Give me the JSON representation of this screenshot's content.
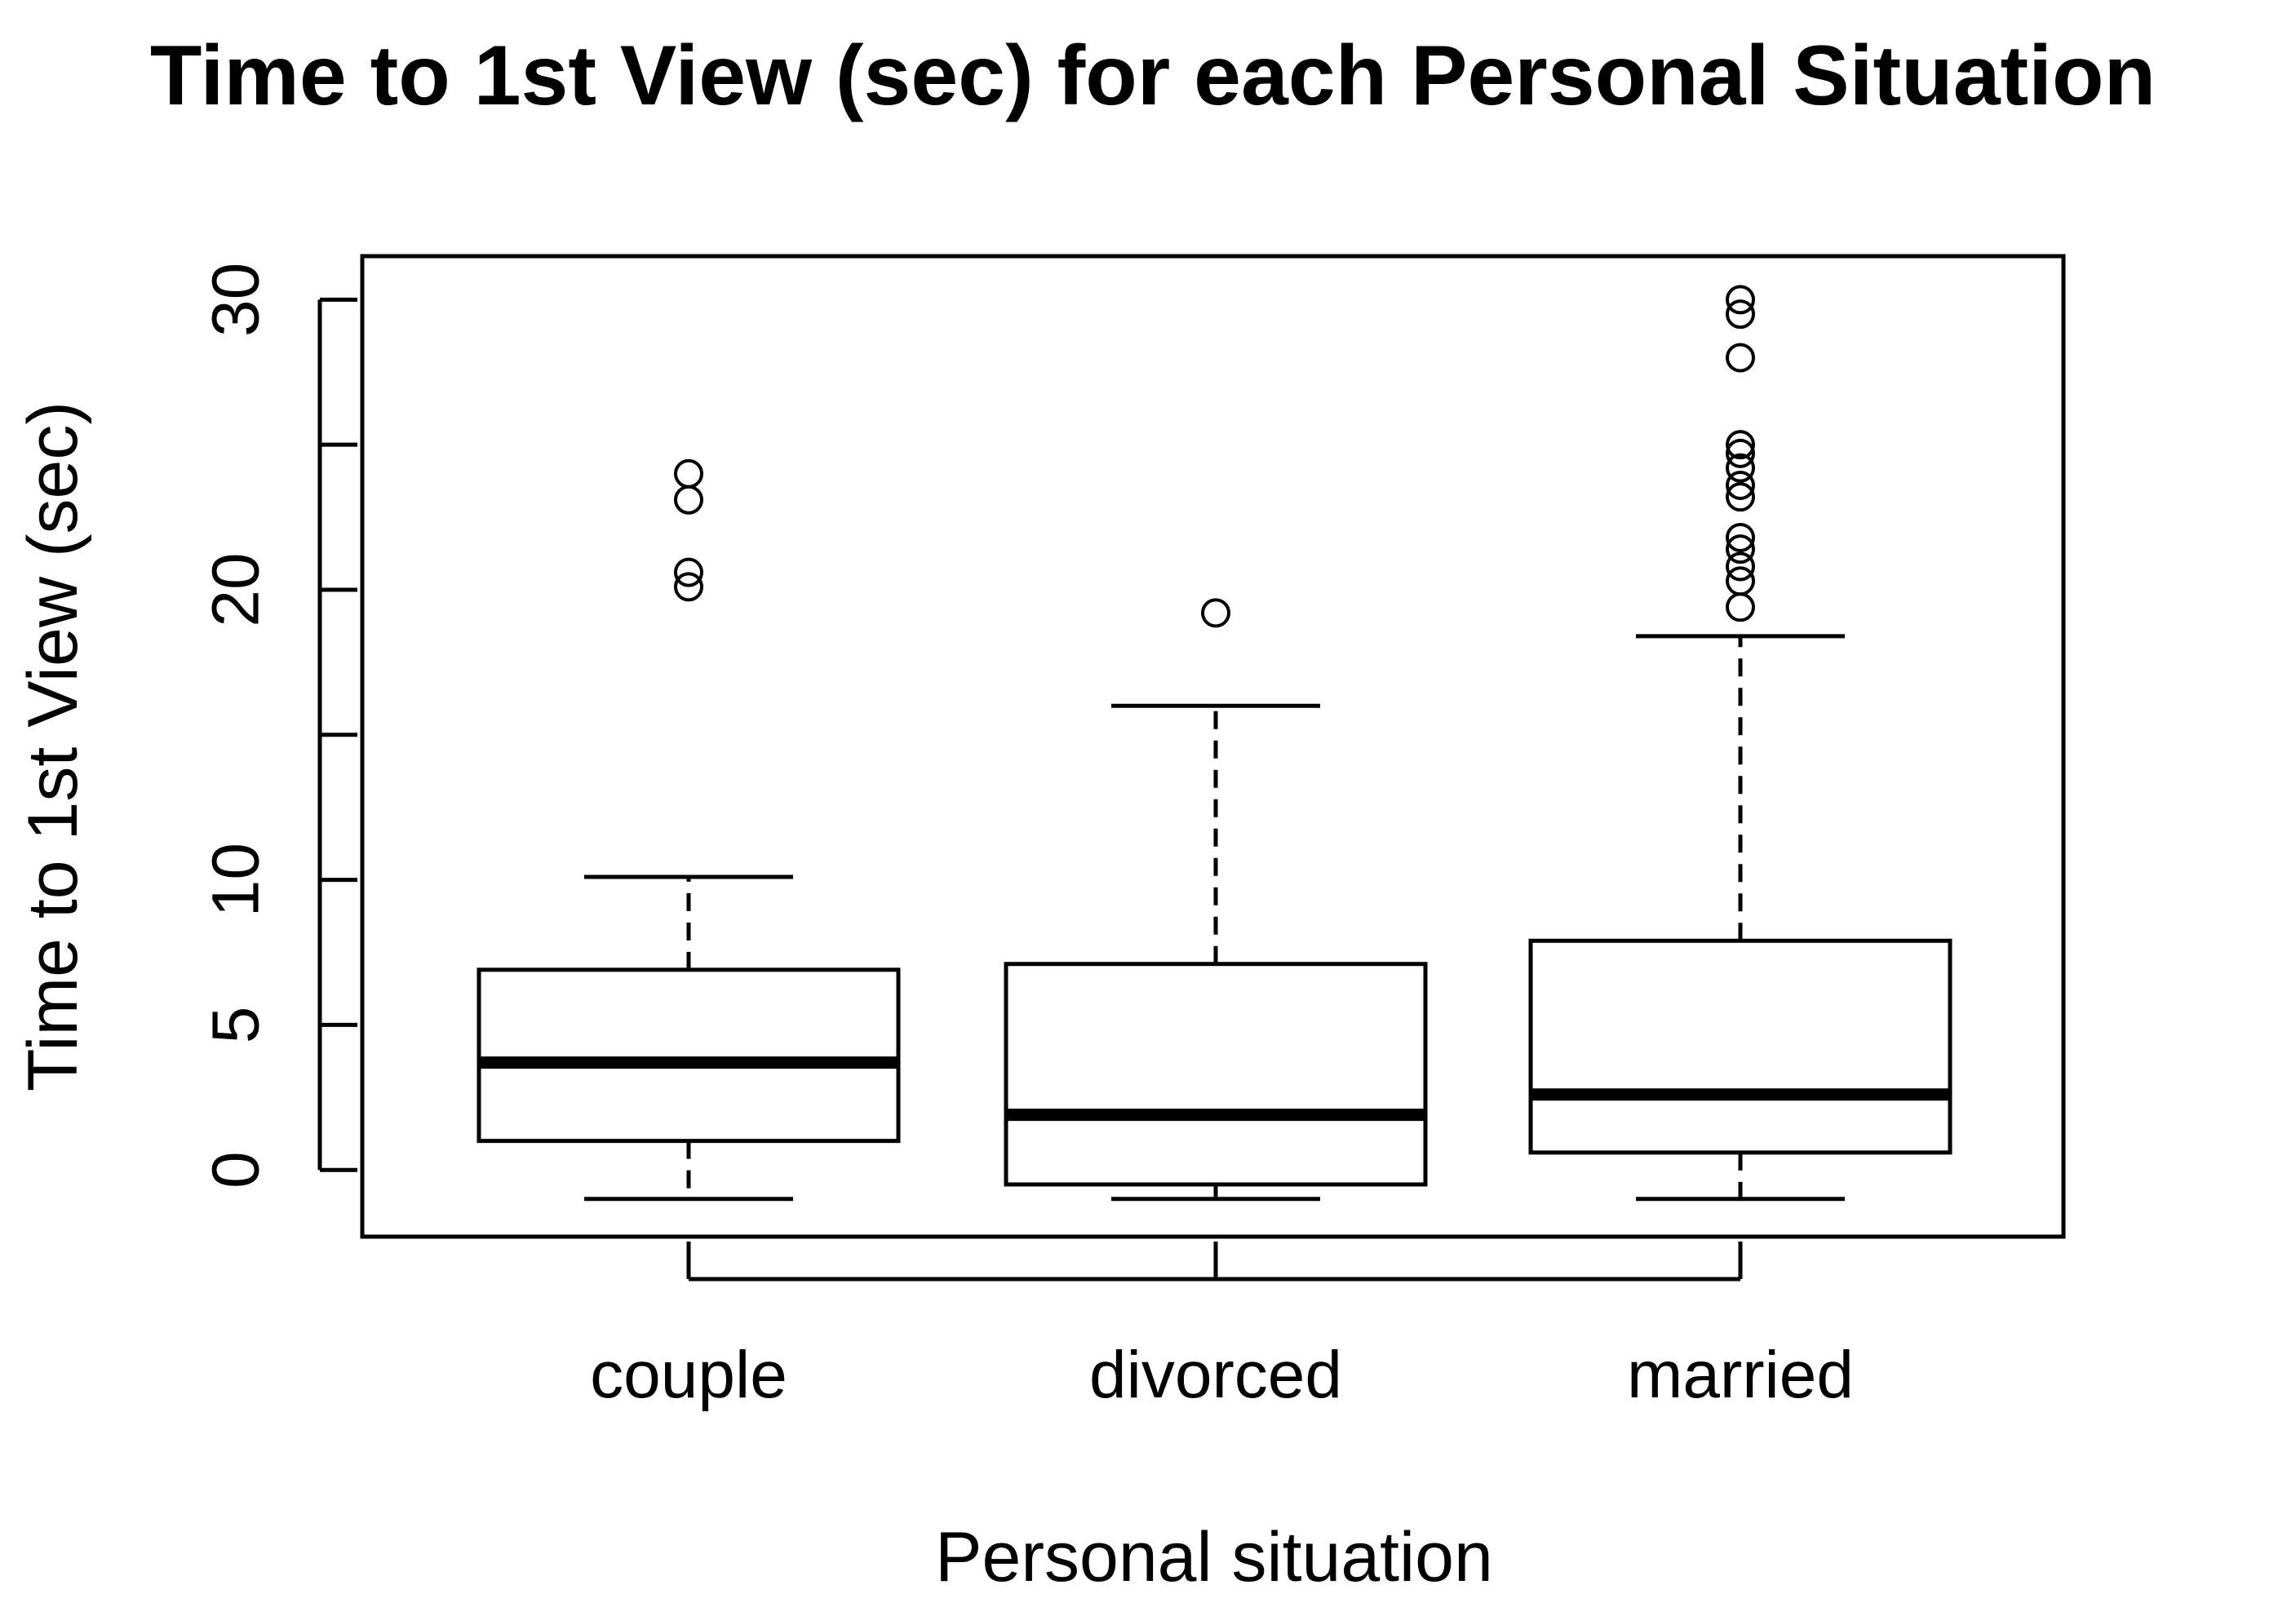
{
  "chart_data": {
    "type": "boxplot",
    "title": "Time to 1st View (sec) for each Personal Situation",
    "xlabel": "Personal situation",
    "ylabel": "Time to 1st View (sec)",
    "categories": [
      "couple",
      "divorced",
      "married"
    ],
    "ylim": [
      -2.3,
      31.5
    ],
    "yticks": [
      0,
      5,
      10,
      15,
      20,
      25,
      30
    ],
    "ytick_labels": [
      "0",
      "5",
      "10",
      "",
      "20",
      "",
      "30"
    ],
    "grid": false,
    "legend": "none",
    "boxes": [
      {
        "category": "couple",
        "whisker_low": -1.0,
        "q1": 1.0,
        "median": 3.7,
        "q3": 6.9,
        "whisker_high": 10.1,
        "outliers": [
          20.1,
          20.6,
          23.1,
          24.0
        ]
      },
      {
        "category": "divorced",
        "whisker_low": -1.0,
        "q1": -0.5,
        "median": 1.9,
        "q3": 7.1,
        "whisker_high": 16.0,
        "outliers": [
          19.2
        ]
      },
      {
        "category": "married",
        "whisker_low": -1.0,
        "q1": 0.6,
        "median": 2.6,
        "q3": 7.9,
        "whisker_high": 18.4,
        "outliers": [
          19.4,
          20.3,
          20.8,
          21.4,
          21.8,
          23.2,
          23.6,
          24.2,
          24.7,
          25.0,
          28.0,
          29.5,
          30.0
        ]
      }
    ]
  }
}
